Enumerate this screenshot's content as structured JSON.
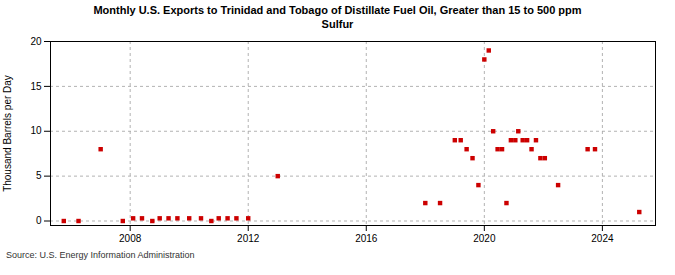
{
  "chart_data": {
    "type": "scatter",
    "title": "Monthly U.S. Exports to Trinidad and Tobago of Distillate Fuel Oil, Greater than 15 to 500 ppm\nSulfur",
    "ylabel": "Thousand Barrels per Day",
    "caption": "Source: U.S. Energy Information Administration",
    "color": "#cc0000",
    "marker": "square",
    "grid": true,
    "xlim": [
      2005.3,
      2025.8
    ],
    "ylim": [
      -0.5,
      20
    ],
    "xticks": [
      2008,
      2012,
      2016,
      2020,
      2024
    ],
    "yticks": [
      0,
      5,
      10,
      15,
      20
    ],
    "x": [
      2005.75,
      2006.25,
      2007.0,
      2007.75,
      2008.1,
      2008.4,
      2008.75,
      2009.0,
      2009.3,
      2009.6,
      2010.0,
      2010.4,
      2010.75,
      2011.0,
      2011.3,
      2011.6,
      2012.0,
      2013.0,
      2018.0,
      2018.5,
      2019.0,
      2019.2,
      2019.4,
      2019.6,
      2019.8,
      2020.0,
      2020.15,
      2020.3,
      2020.45,
      2020.6,
      2020.75,
      2020.9,
      2021.05,
      2021.15,
      2021.3,
      2021.45,
      2021.6,
      2021.75,
      2021.9,
      2022.05,
      2022.5,
      2023.5,
      2023.75,
      2025.25
    ],
    "values": [
      0.0,
      0.0,
      8.0,
      0.0,
      0.3,
      0.3,
      0.0,
      0.3,
      0.3,
      0.3,
      0.3,
      0.3,
      0.0,
      0.3,
      0.3,
      0.3,
      0.3,
      5.0,
      2.0,
      2.0,
      9.0,
      9.0,
      8.0,
      7.0,
      4.0,
      18.0,
      19.0,
      10.0,
      8.0,
      8.0,
      2.0,
      9.0,
      9.0,
      10.0,
      9.0,
      9.0,
      8.0,
      9.0,
      7.0,
      7.0,
      4.0,
      8.0,
      8.0,
      1.0
    ]
  }
}
